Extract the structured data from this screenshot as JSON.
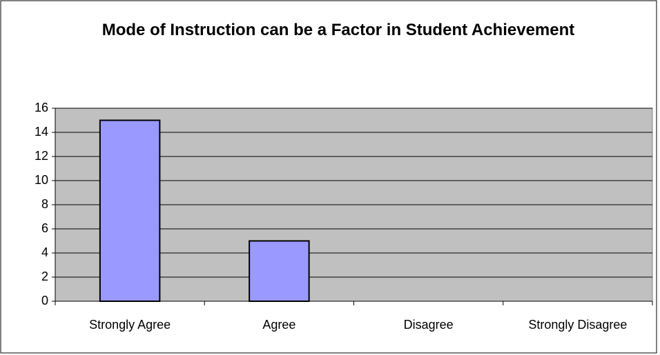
{
  "chart_data": {
    "type": "bar",
    "title": "Mode of Instruction can be a Factor in Student Achievement",
    "categories": [
      "Strongly Agree",
      "Agree",
      "Disagree",
      "Strongly Disagree"
    ],
    "values": [
      15,
      5,
      0,
      0
    ],
    "color": "#9999ff",
    "ylim": [
      0,
      16
    ],
    "yticks": [
      0,
      2,
      4,
      6,
      8,
      10,
      12,
      14,
      16
    ],
    "grid": true
  }
}
